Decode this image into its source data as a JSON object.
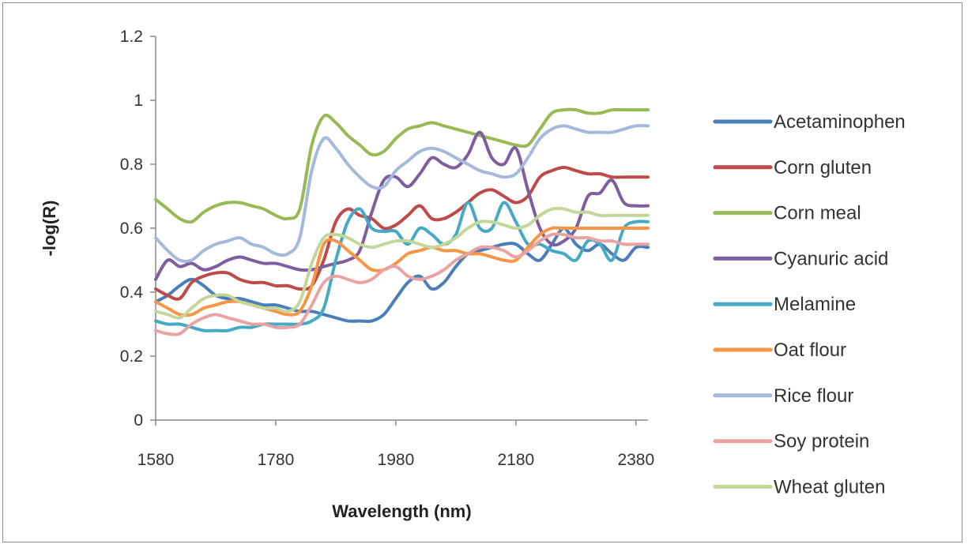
{
  "chart_data": {
    "type": "line",
    "xlabel": "Wavelength (nm)",
    "ylabel": "-log(R)",
    "xlim": [
      1580,
      2400
    ],
    "ylim": [
      0,
      1.2
    ],
    "xticks": [
      1580,
      1780,
      1980,
      2180,
      2380
    ],
    "yticks": [
      0,
      0.2,
      0.4,
      0.6,
      0.8,
      1,
      1.2
    ],
    "ytick_labels": [
      "0",
      "0.2",
      "0.4",
      "0.6",
      "0.8",
      "1",
      "1.2"
    ],
    "grid": false,
    "legend": "right",
    "x": [
      1580,
      1600,
      1620,
      1640,
      1660,
      1680,
      1700,
      1720,
      1740,
      1760,
      1780,
      1800,
      1820,
      1840,
      1860,
      1880,
      1900,
      1920,
      1940,
      1960,
      1980,
      2000,
      2020,
      2040,
      2060,
      2080,
      2100,
      2120,
      2140,
      2160,
      2180,
      2200,
      2220,
      2240,
      2260,
      2280,
      2300,
      2320,
      2340,
      2360,
      2380,
      2400
    ],
    "series": [
      {
        "name": "Acetaminophen",
        "color": "#4a7ebb",
        "values": [
          0.37,
          0.39,
          0.42,
          0.44,
          0.42,
          0.39,
          0.38,
          0.38,
          0.37,
          0.36,
          0.36,
          0.35,
          0.34,
          0.34,
          0.33,
          0.32,
          0.31,
          0.31,
          0.31,
          0.33,
          0.38,
          0.43,
          0.45,
          0.41,
          0.43,
          0.48,
          0.52,
          0.53,
          0.54,
          0.55,
          0.55,
          0.52,
          0.5,
          0.55,
          0.6,
          0.55,
          0.53,
          0.55,
          0.52,
          0.5,
          0.54,
          0.54
        ]
      },
      {
        "name": "Corn gluten",
        "color": "#be4b48",
        "values": [
          0.41,
          0.39,
          0.38,
          0.43,
          0.45,
          0.46,
          0.46,
          0.44,
          0.43,
          0.43,
          0.42,
          0.42,
          0.41,
          0.42,
          0.5,
          0.62,
          0.66,
          0.64,
          0.63,
          0.6,
          0.61,
          0.64,
          0.67,
          0.63,
          0.63,
          0.65,
          0.68,
          0.71,
          0.72,
          0.7,
          0.68,
          0.7,
          0.76,
          0.78,
          0.79,
          0.78,
          0.77,
          0.77,
          0.76,
          0.76,
          0.76,
          0.76
        ]
      },
      {
        "name": "Corn meal",
        "color": "#98b954",
        "values": [
          0.69,
          0.66,
          0.63,
          0.62,
          0.65,
          0.67,
          0.68,
          0.68,
          0.67,
          0.66,
          0.64,
          0.63,
          0.66,
          0.86,
          0.95,
          0.93,
          0.89,
          0.86,
          0.83,
          0.84,
          0.88,
          0.91,
          0.92,
          0.93,
          0.92,
          0.91,
          0.9,
          0.89,
          0.88,
          0.87,
          0.86,
          0.86,
          0.91,
          0.96,
          0.97,
          0.97,
          0.96,
          0.96,
          0.97,
          0.97,
          0.97,
          0.97
        ]
      },
      {
        "name": "Cyanuric acid",
        "color": "#7d5fa0",
        "values": [
          0.44,
          0.5,
          0.48,
          0.49,
          0.47,
          0.48,
          0.5,
          0.51,
          0.5,
          0.49,
          0.49,
          0.48,
          0.47,
          0.47,
          0.48,
          0.49,
          0.5,
          0.53,
          0.65,
          0.75,
          0.76,
          0.73,
          0.77,
          0.82,
          0.8,
          0.79,
          0.83,
          0.9,
          0.82,
          0.8,
          0.85,
          0.72,
          0.6,
          0.55,
          0.56,
          0.6,
          0.7,
          0.71,
          0.75,
          0.68,
          0.67,
          0.67
        ]
      },
      {
        "name": "Melamine",
        "color": "#46aac5",
        "values": [
          0.31,
          0.3,
          0.3,
          0.29,
          0.28,
          0.28,
          0.28,
          0.29,
          0.29,
          0.3,
          0.3,
          0.3,
          0.3,
          0.31,
          0.35,
          0.5,
          0.62,
          0.66,
          0.6,
          0.59,
          0.59,
          0.55,
          0.6,
          0.58,
          0.55,
          0.58,
          0.68,
          0.6,
          0.6,
          0.68,
          0.62,
          0.55,
          0.55,
          0.53,
          0.52,
          0.5,
          0.56,
          0.55,
          0.5,
          0.6,
          0.62,
          0.62
        ]
      },
      {
        "name": "Oat flour",
        "color": "#f79646",
        "values": [
          0.37,
          0.35,
          0.33,
          0.33,
          0.35,
          0.36,
          0.37,
          0.37,
          0.36,
          0.35,
          0.34,
          0.33,
          0.34,
          0.42,
          0.55,
          0.56,
          0.53,
          0.5,
          0.47,
          0.47,
          0.49,
          0.52,
          0.53,
          0.54,
          0.53,
          0.53,
          0.52,
          0.52,
          0.51,
          0.5,
          0.5,
          0.54,
          0.58,
          0.6,
          0.6,
          0.6,
          0.6,
          0.6,
          0.6,
          0.6,
          0.6,
          0.6
        ]
      },
      {
        "name": "Rice flour",
        "color": "#a6b9dd",
        "values": [
          0.57,
          0.53,
          0.5,
          0.5,
          0.53,
          0.55,
          0.56,
          0.57,
          0.55,
          0.54,
          0.52,
          0.52,
          0.57,
          0.78,
          0.88,
          0.85,
          0.8,
          0.76,
          0.73,
          0.73,
          0.78,
          0.81,
          0.84,
          0.85,
          0.84,
          0.82,
          0.8,
          0.78,
          0.77,
          0.76,
          0.77,
          0.82,
          0.88,
          0.91,
          0.92,
          0.91,
          0.9,
          0.9,
          0.9,
          0.91,
          0.92,
          0.92
        ]
      },
      {
        "name": "Soy protein",
        "color": "#e9a3a3",
        "values": [
          0.28,
          0.27,
          0.27,
          0.3,
          0.32,
          0.33,
          0.32,
          0.31,
          0.3,
          0.3,
          0.29,
          0.29,
          0.3,
          0.36,
          0.43,
          0.45,
          0.44,
          0.43,
          0.44,
          0.47,
          0.48,
          0.45,
          0.44,
          0.45,
          0.47,
          0.5,
          0.52,
          0.54,
          0.54,
          0.53,
          0.51,
          0.53,
          0.56,
          0.58,
          0.58,
          0.57,
          0.57,
          0.56,
          0.56,
          0.55,
          0.55,
          0.55
        ]
      },
      {
        "name": "Wheat gluten",
        "color": "#c4d79b",
        "values": [
          0.34,
          0.33,
          0.32,
          0.35,
          0.38,
          0.39,
          0.39,
          0.37,
          0.36,
          0.35,
          0.35,
          0.34,
          0.37,
          0.49,
          0.57,
          0.58,
          0.57,
          0.55,
          0.54,
          0.55,
          0.56,
          0.56,
          0.55,
          0.54,
          0.55,
          0.57,
          0.6,
          0.62,
          0.62,
          0.61,
          0.6,
          0.61,
          0.64,
          0.66,
          0.66,
          0.65,
          0.65,
          0.64,
          0.64,
          0.64,
          0.64,
          0.64
        ]
      }
    ]
  }
}
